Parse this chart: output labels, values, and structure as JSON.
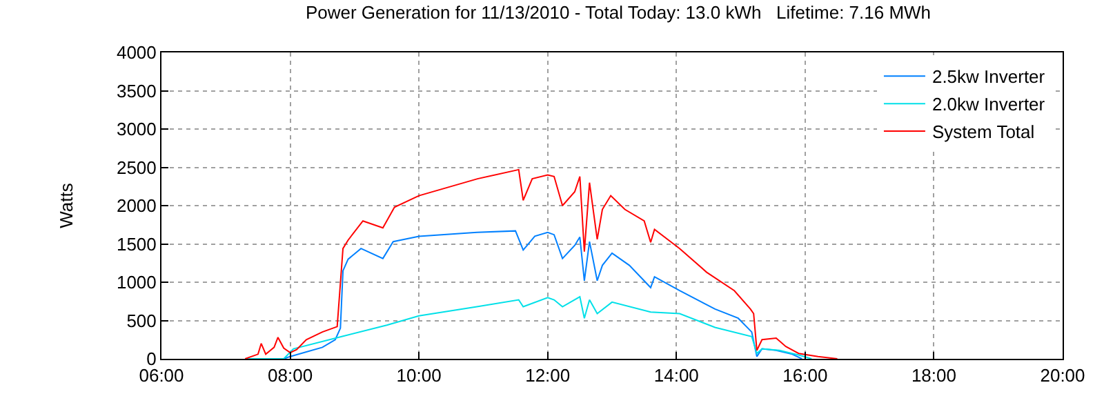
{
  "chart_data": {
    "type": "line",
    "title": "Power Generation for 11/13/2010 - Total Today: 13.0 kWh   Lifetime: 7.16 MWh",
    "ylabel": "Watts",
    "xlim": [
      6,
      20
    ],
    "xticks": [
      {
        "value": 6,
        "label": "06:00"
      },
      {
        "value": 8,
        "label": "08:00"
      },
      {
        "value": 10,
        "label": "10:00"
      },
      {
        "value": 12,
        "label": "12:00"
      },
      {
        "value": 14,
        "label": "14:00"
      },
      {
        "value": 16,
        "label": "16:00"
      },
      {
        "value": 18,
        "label": "18:00"
      },
      {
        "value": 20,
        "label": "20:00"
      }
    ],
    "ylim": [
      0,
      4000
    ],
    "yticks": [
      0,
      500,
      1000,
      1500,
      2000,
      2500,
      3000,
      3500,
      4000
    ],
    "grid": true,
    "legend": "top right",
    "line_style": "solid",
    "marker": "none",
    "series": [
      {
        "name": "2.5kw Inverter",
        "color": "#0080ff",
        "x": [
          7.3,
          7.9,
          8.0,
          8.5,
          8.7,
          8.78,
          8.82,
          8.9,
          9.1,
          9.44,
          9.6,
          10.0,
          10.9,
          11.5,
          11.62,
          11.8,
          12.0,
          12.1,
          12.23,
          12.42,
          12.5,
          12.57,
          12.65,
          12.77,
          12.85,
          13.0,
          13.27,
          13.6,
          13.66,
          14.05,
          14.6,
          14.96,
          15.17,
          15.25,
          15.33,
          15.55,
          15.8,
          15.95
        ],
        "values": [
          0,
          0,
          30,
          150,
          250,
          400,
          1150,
          1300,
          1440,
          1310,
          1530,
          1600,
          1650,
          1670,
          1420,
          1600,
          1650,
          1620,
          1310,
          1480,
          1590,
          1020,
          1530,
          1020,
          1220,
          1380,
          1220,
          930,
          1070,
          890,
          650,
          530,
          350,
          30,
          130,
          110,
          60,
          0
        ]
      },
      {
        "name": "2.0kw Inverter",
        "color": "#00e0e8",
        "x": [
          7.3,
          7.9,
          8.05,
          8.8,
          9.5,
          10.0,
          10.9,
          11.55,
          11.62,
          12.0,
          12.1,
          12.23,
          12.5,
          12.57,
          12.65,
          12.77,
          13.0,
          13.6,
          14.05,
          14.6,
          15.17,
          15.25,
          15.33,
          15.6,
          15.9,
          16.1
        ],
        "values": [
          0,
          0,
          130,
          290,
          440,
          560,
          680,
          770,
          680,
          800,
          770,
          680,
          810,
          530,
          770,
          590,
          740,
          610,
          590,
          410,
          290,
          70,
          130,
          110,
          50,
          0
        ]
      },
      {
        "name": "System Total",
        "color": "#ff0000",
        "x": [
          7.3,
          7.5,
          7.55,
          7.62,
          7.75,
          7.81,
          7.9,
          8.0,
          8.1,
          8.25,
          8.5,
          8.73,
          8.82,
          8.9,
          9.13,
          9.44,
          9.62,
          10.0,
          10.91,
          11.55,
          11.62,
          11.76,
          12.0,
          12.1,
          12.23,
          12.42,
          12.5,
          12.57,
          12.65,
          12.77,
          12.85,
          12.98,
          13.2,
          13.5,
          13.6,
          13.66,
          14.05,
          14.47,
          14.9,
          15.15,
          15.2,
          15.25,
          15.33,
          15.55,
          15.7,
          15.9,
          16.2,
          16.5
        ],
        "values": [
          0,
          60,
          200,
          60,
          150,
          280,
          140,
          80,
          120,
          250,
          350,
          420,
          1440,
          1550,
          1800,
          1710,
          1980,
          2130,
          2350,
          2470,
          2070,
          2350,
          2400,
          2380,
          2000,
          2180,
          2380,
          1400,
          2300,
          1560,
          1950,
          2130,
          1950,
          1800,
          1520,
          1690,
          1440,
          1130,
          890,
          650,
          590,
          110,
          250,
          270,
          160,
          70,
          30,
          0
        ]
      }
    ]
  }
}
